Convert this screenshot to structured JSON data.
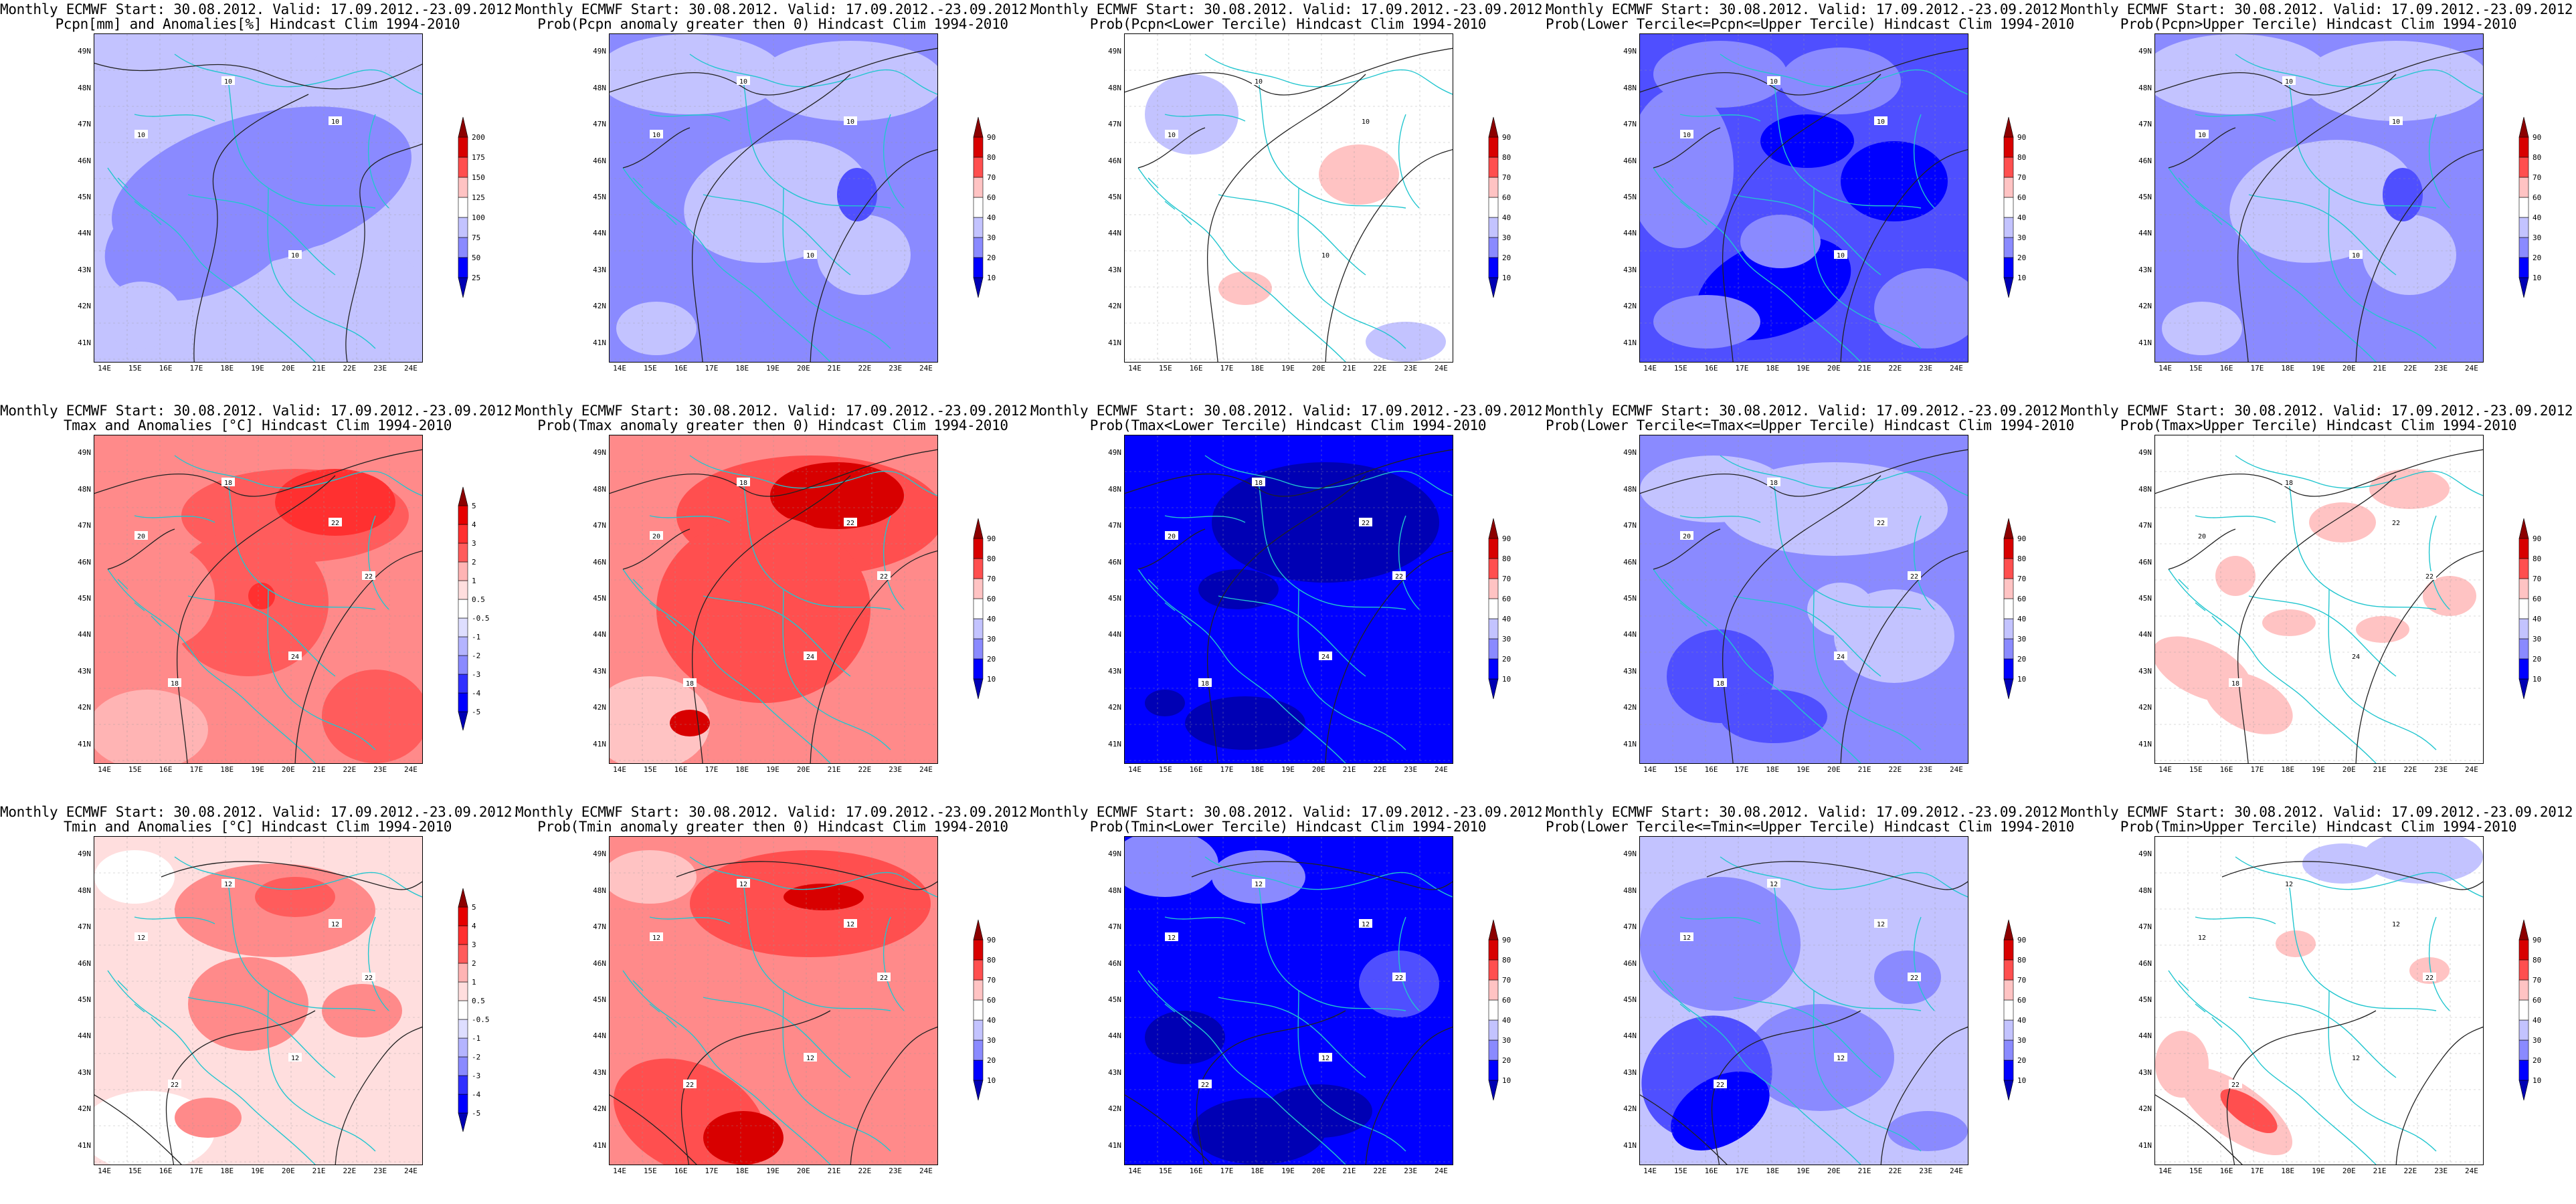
{
  "colors": {
    "border": "#000000",
    "contour": "#222222",
    "coast": "#22c6cf",
    "grid": "#999999",
    "scale_prob": [
      "#0000b4",
      "#0000ff",
      "#4f4fff",
      "#8a8aff",
      "#c3c3ff",
      "#ffffff",
      "#ffc3c3",
      "#ff8a8a",
      "#ff4f4f",
      "#d80000",
      "#8c0000"
    ],
    "scale_anom": [
      "#0000b4",
      "#0000ff",
      "#3030ff",
      "#5c5cff",
      "#8a8aff",
      "#b4b4ff",
      "#dedeff",
      "#ffffff",
      "#ffdede",
      "#ffb4b4",
      "#ff8a8a",
      "#ff5c5c",
      "#ff3030",
      "#e60000",
      "#8c0000"
    ],
    "scale_pcpn": [
      "#0000b4",
      "#0000ff",
      "#4f4fff",
      "#8a8aff",
      "#c3c3ff",
      "#ffffff",
      "#ffc3c3",
      "#ff8a8a",
      "#ff4f4f",
      "#d80000",
      "#8c0000"
    ]
  },
  "axes": {
    "lat_labels": [
      "41N",
      "42N",
      "43N",
      "44N",
      "45N",
      "46N",
      "47N",
      "48N",
      "49N"
    ],
    "lon_labels": [
      "14E",
      "15E",
      "16E",
      "17E",
      "18E",
      "19E",
      "20E",
      "21E",
      "22E",
      "23E",
      "24E"
    ]
  },
  "colorbars": {
    "pcpn": [
      "25",
      "50",
      "75",
      "100",
      "125",
      "150",
      "175",
      "200"
    ],
    "prob": [
      "10",
      "20",
      "30",
      "40",
      "60",
      "70",
      "80",
      "90"
    ],
    "anom": [
      "-5",
      "-4",
      "-3",
      "-2",
      "-1",
      "-0.5",
      "0.5",
      "1",
      "2",
      "3",
      "4",
      "5"
    ]
  },
  "panels": [
    {
      "id": "pcpn-anomaly",
      "title1": "Monthly ECMWF Start: 30.08.2012. Valid: 17.09.2012.-23.09.2012.",
      "title2": "Pcpn[mm] and Anomalies[%] Hindcast Clim 1994-2010",
      "scale": "pcpn",
      "pattern": "pcpn_a",
      "contour_labels": [
        "10",
        "10",
        "10",
        "10"
      ]
    },
    {
      "id": "pcpn-prob-gt0",
      "title1": "Monthly ECMWF Start: 30.08.2012. Valid: 17.09.2012.-23.09.2012.",
      "title2": "Prob(Pcpn anomaly greater then 0) Hindcast Clim 1994-2010",
      "scale": "prob",
      "pattern": "pcpn_b",
      "contour_labels": [
        "10",
        "10",
        "10",
        "10"
      ]
    },
    {
      "id": "pcpn-prob-lower",
      "title1": "Monthly ECMWF Start: 30.08.2012. Valid: 17.09.2012.-23.09.2012.",
      "title2": "Prob(Pcpn<Lower Tercile) Hindcast Clim 1994-2010",
      "scale": "prob",
      "pattern": "pcpn_c",
      "contour_labels": [
        "10",
        "10",
        "10",
        "10"
      ]
    },
    {
      "id": "pcpn-prob-middle",
      "title1": "Monthly ECMWF Start: 30.08.2012. Valid: 17.09.2012.-23.09.2012.",
      "title2": "Prob(Lower Tercile<=Pcpn<=Upper Tercile) Hindcast Clim 1994-2010",
      "scale": "prob",
      "pattern": "pcpn_d",
      "contour_labels": [
        "10",
        "10",
        "10",
        "10"
      ]
    },
    {
      "id": "pcpn-prob-upper",
      "title1": "Monthly ECMWF Start: 30.08.2012. Valid: 17.09.2012.-23.09.2012.",
      "title2": "Prob(Pcpn>Upper Tercile) Hindcast Clim 1994-2010",
      "scale": "prob",
      "pattern": "pcpn_b",
      "contour_labels": [
        "10",
        "10",
        "10",
        "10"
      ]
    },
    {
      "id": "tmax-anomaly",
      "title1": "Monthly ECMWF Start: 30.08.2012. Valid: 17.09.2012.-23.09.2012.",
      "title2": "Tmax and Anomalies [°C] Hindcast Clim 1994-2010",
      "scale": "anom",
      "pattern": "tmax_a",
      "contour_labels": [
        "18",
        "20",
        "22",
        "24",
        "18",
        "22"
      ]
    },
    {
      "id": "tmax-prob-gt0",
      "title1": "Monthly ECMWF Start: 30.08.2012. Valid: 17.09.2012.-23.09.2012.",
      "title2": "Prob(Tmax anomaly greater then 0) Hindcast Clim 1994-2010",
      "scale": "prob",
      "pattern": "tmax_b",
      "contour_labels": [
        "18",
        "20",
        "22",
        "24",
        "18",
        "22"
      ]
    },
    {
      "id": "tmax-prob-lower",
      "title1": "Monthly ECMWF Start: 30.08.2012. Valid: 17.09.2012.-23.09.2012.",
      "title2": "Prob(Tmax<Lower Tercile) Hindcast Clim 1994-2010",
      "scale": "prob",
      "pattern": "tmax_c",
      "contour_labels": [
        "18",
        "20",
        "22",
        "24",
        "18",
        "22"
      ]
    },
    {
      "id": "tmax-prob-middle",
      "title1": "Monthly ECMWF Start: 30.08.2012. Valid: 17.09.2012.-23.09.2012.",
      "title2": "Prob(Lower Tercile<=Tmax<=Upper Tercile) Hindcast Clim 1994-2010",
      "scale": "prob",
      "pattern": "tmax_d",
      "contour_labels": [
        "18",
        "20",
        "22",
        "24",
        "18",
        "22"
      ]
    },
    {
      "id": "tmax-prob-upper",
      "title1": "Monthly ECMWF Start: 30.08.2012. Valid: 17.09.2012.-23.09.2012.",
      "title2": "Prob(Tmax>Upper Tercile) Hindcast Clim 1994-2010",
      "scale": "prob",
      "pattern": "tmax_e",
      "contour_labels": [
        "18",
        "20",
        "22",
        "24",
        "18",
        "22"
      ]
    },
    {
      "id": "tmin-anomaly",
      "title1": "Monthly ECMWF Start: 30.08.2012. Valid: 17.09.2012.-23.09.2012.",
      "title2": "Tmin and Anomalies [°C] Hindcast Clim 1994-2010",
      "scale": "anom",
      "pattern": "tmin_a",
      "contour_labels": [
        "12",
        "12",
        "12",
        "12",
        "22",
        "22"
      ]
    },
    {
      "id": "tmin-prob-gt0",
      "title1": "Monthly ECMWF Start: 30.08.2012. Valid: 17.09.2012.-23.09.2012.",
      "title2": "Prob(Tmin anomaly greater then 0) Hindcast Clim 1994-2010",
      "scale": "prob",
      "pattern": "tmin_b",
      "contour_labels": [
        "12",
        "12",
        "12",
        "12",
        "22",
        "22"
      ]
    },
    {
      "id": "tmin-prob-lower",
      "title1": "Monthly ECMWF Start: 30.08.2012. Valid: 17.09.2012.-23.09.2012.",
      "title2": "Prob(Tmin<Lower Tercile) Hindcast Clim 1994-2010",
      "scale": "prob",
      "pattern": "tmin_c",
      "contour_labels": [
        "12",
        "12",
        "12",
        "12",
        "22",
        "22"
      ]
    },
    {
      "id": "tmin-prob-middle",
      "title1": "Monthly ECMWF Start: 30.08.2012. Valid: 17.09.2012.-23.09.2012.",
      "title2": "Prob(Lower Tercile<=Tmin<=Upper Tercile) Hindcast Clim 1994-2010",
      "scale": "prob",
      "pattern": "tmin_d",
      "contour_labels": [
        "12",
        "12",
        "12",
        "12",
        "22",
        "22"
      ]
    },
    {
      "id": "tmin-prob-upper",
      "title1": "Monthly ECMWF Start: 30.08.2012. Valid: 17.09.2012.-23.09.2012.",
      "title2": "Prob(Tmin>Upper Tercile) Hindcast Clim 1994-2010",
      "scale": "prob",
      "pattern": "tmin_e",
      "contour_labels": [
        "12",
        "12",
        "12",
        "12",
        "22",
        "22"
      ]
    }
  ]
}
